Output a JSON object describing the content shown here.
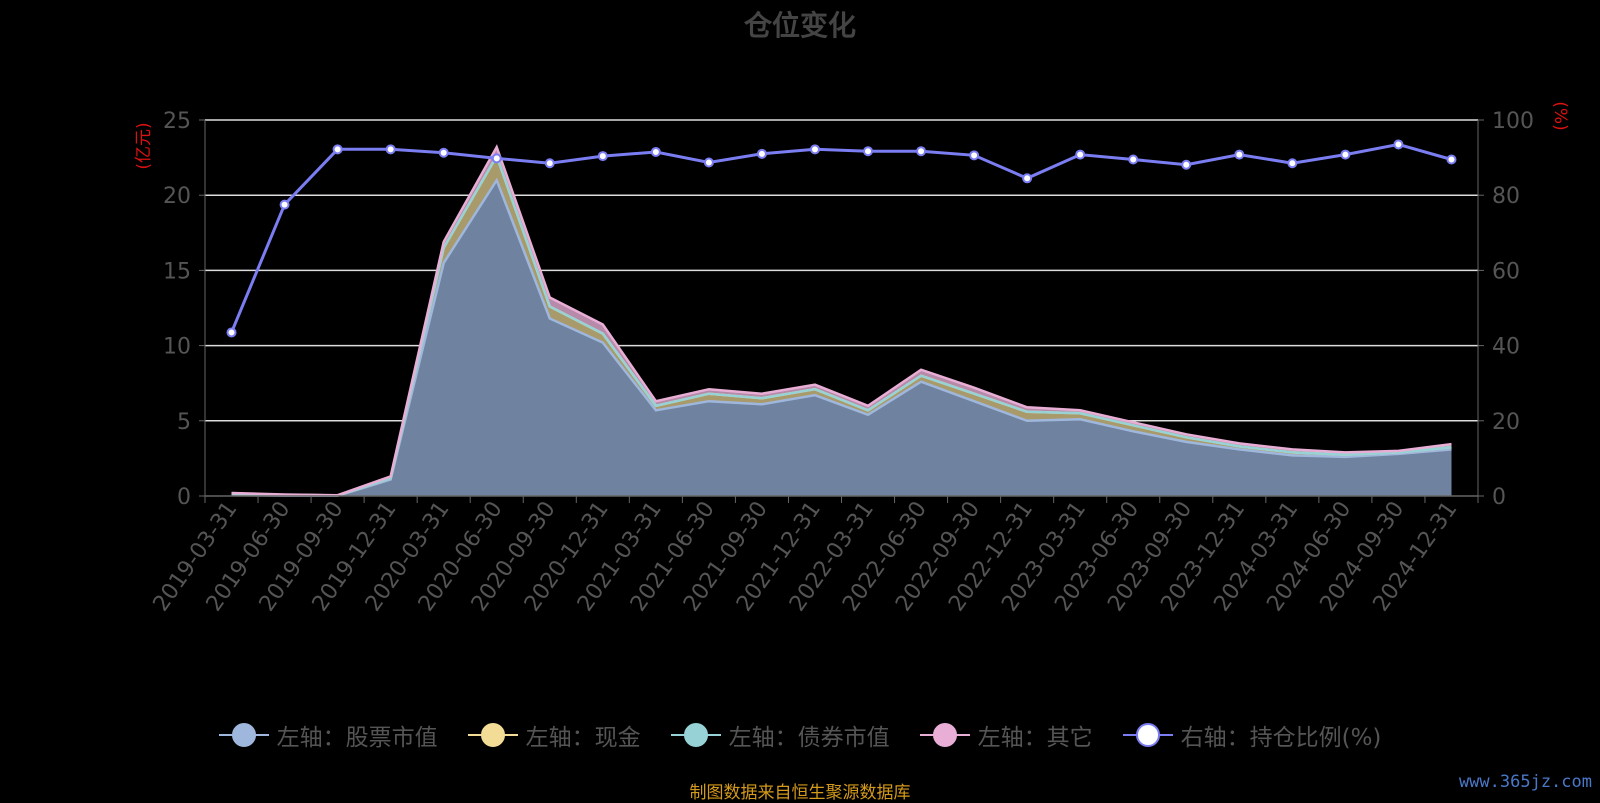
{
  "title": "仓位变化",
  "source_note": "制图数据来自恒生聚源数据库",
  "watermark": "www.365jz.com",
  "chart_data": {
    "type": "area",
    "title": "仓位变化",
    "x": [
      "2019-03-31",
      "2019-06-30",
      "2019-09-30",
      "2019-12-31",
      "2020-03-31",
      "2020-06-30",
      "2020-09-30",
      "2020-12-31",
      "2021-03-31",
      "2021-06-30",
      "2021-09-30",
      "2021-12-31",
      "2022-03-31",
      "2022-06-30",
      "2022-09-30",
      "2022-12-31",
      "2023-03-31",
      "2023-06-30",
      "2023-09-30",
      "2023-12-31",
      "2024-03-31",
      "2024-06-30",
      "2024-09-30",
      "2024-12-31"
    ],
    "y_left_label": "(亿元)",
    "y_right_label": "(%)",
    "y_left_lim": [
      0,
      25
    ],
    "y_left_ticks": [
      0,
      5,
      10,
      15,
      20,
      25
    ],
    "y_right_lim": [
      0,
      100
    ],
    "y_right_ticks": [
      0,
      20,
      40,
      60,
      80,
      100
    ],
    "grid": true,
    "legend_position": "bottom",
    "series": [
      {
        "name": "左轴：股票市值",
        "axis": "left",
        "type": "area",
        "stack": true,
        "color": "#6f83a0",
        "line_color": "#9fb7dd",
        "values": [
          0.05,
          0.02,
          0.01,
          1.1,
          15.5,
          21.0,
          11.8,
          10.2,
          5.7,
          6.3,
          6.1,
          6.7,
          5.4,
          7.6,
          6.3,
          5.0,
          5.1,
          4.3,
          3.6,
          3.1,
          2.7,
          2.6,
          2.8,
          3.1
        ]
      },
      {
        "name": "左轴：现金",
        "axis": "left",
        "type": "area",
        "stack": true,
        "color": "#a89a6a",
        "line_color": "#f2dc96",
        "values": [
          0.1,
          0.05,
          0.03,
          0.1,
          1.0,
          1.6,
          0.8,
          0.6,
          0.3,
          0.5,
          0.4,
          0.4,
          0.3,
          0.4,
          0.5,
          0.6,
          0.4,
          0.4,
          0.3,
          0.2,
          0.2,
          0.15,
          0.1,
          0.15
        ]
      },
      {
        "name": "左轴：债券市值",
        "axis": "left",
        "type": "area",
        "stack": true,
        "color": "#7fa8ac",
        "line_color": "#97d3d6",
        "values": [
          0,
          0,
          0,
          0,
          0,
          0,
          0,
          0,
          0,
          0,
          0,
          0,
          0,
          0,
          0,
          0,
          0,
          0,
          0,
          0,
          0,
          0,
          0,
          0
        ]
      },
      {
        "name": "左轴：其它",
        "axis": "left",
        "type": "area",
        "stack": true,
        "color": "#b68aa8",
        "line_color": "#e8aed6",
        "values": [
          0.05,
          0.03,
          0.01,
          0.1,
          0.4,
          0.6,
          0.6,
          0.6,
          0.3,
          0.3,
          0.3,
          0.3,
          0.3,
          0.4,
          0.4,
          0.3,
          0.2,
          0.2,
          0.2,
          0.2,
          0.2,
          0.15,
          0.1,
          0.2
        ]
      },
      {
        "name": "右轴：持仓比例(%)",
        "axis": "right",
        "type": "line",
        "color": "#7b7df2",
        "values": [
          43.5,
          77.5,
          92.2,
          92.2,
          91.3,
          89.8,
          88.5,
          90.4,
          91.5,
          88.7,
          91.0,
          92.2,
          91.7,
          91.7,
          90.6,
          84.5,
          90.8,
          89.5,
          88.1,
          90.8,
          88.5,
          90.8,
          93.5,
          89.5
        ]
      }
    ]
  }
}
